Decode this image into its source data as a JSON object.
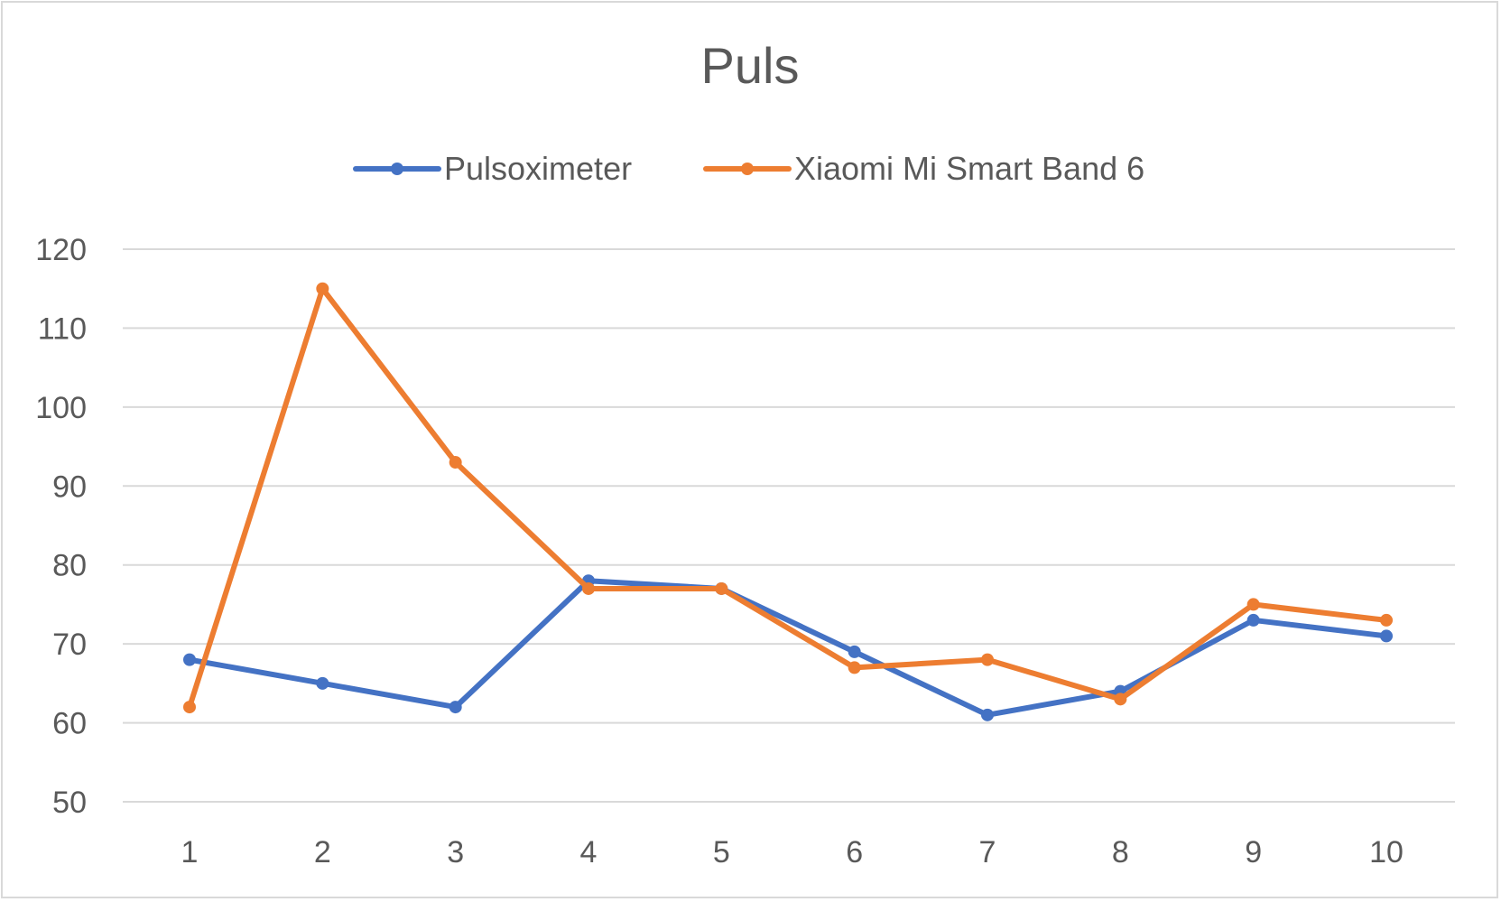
{
  "chart_data": {
    "type": "line",
    "title": "Puls",
    "categories": [
      "1",
      "2",
      "3",
      "4",
      "5",
      "6",
      "7",
      "8",
      "9",
      "10"
    ],
    "series": [
      {
        "name": "Pulsoximeter",
        "color": "#4472c4",
        "values": [
          68,
          65,
          62,
          78,
          77,
          69,
          61,
          64,
          73,
          71
        ]
      },
      {
        "name": "Xiaomi Mi Smart Band 6",
        "color": "#ed7d31",
        "values": [
          62,
          115,
          93,
          77,
          77,
          67,
          68,
          63,
          75,
          73
        ]
      }
    ],
    "y_ticks": [
      "50",
      "60",
      "70",
      "80",
      "90",
      "100",
      "110",
      "120"
    ],
    "ylim": [
      50,
      120
    ],
    "grid": true,
    "legend_position": "top"
  }
}
